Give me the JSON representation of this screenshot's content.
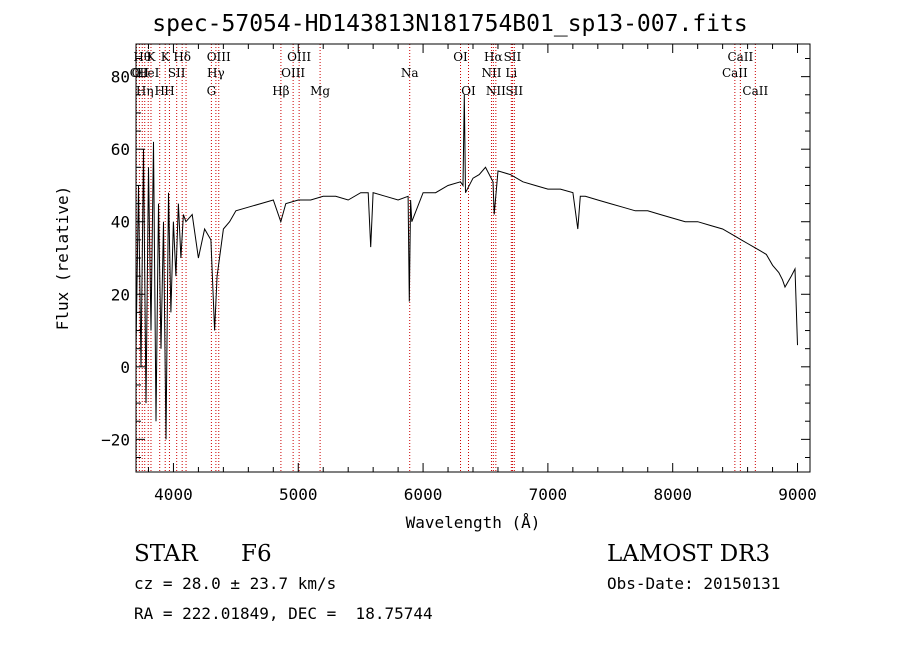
{
  "chart_data": {
    "type": "line",
    "title": "spec-57054-HD143813N181754B01_sp13-007.fits",
    "xlabel": "Wavelength (Å)",
    "ylabel": "Flux (relative)",
    "xlim": [
      3700,
      9100
    ],
    "ylim": [
      -29,
      89
    ],
    "xticks": [
      4000,
      5000,
      6000,
      7000,
      8000,
      9000
    ],
    "yticks": [
      -20,
      0,
      20,
      40,
      60,
      80
    ],
    "series": [
      {
        "name": "spectrum",
        "x": [
          3700,
          3720,
          3740,
          3760,
          3780,
          3800,
          3820,
          3840,
          3860,
          3880,
          3900,
          3920,
          3940,
          3960,
          3980,
          4000,
          4020,
          4040,
          4060,
          4080,
          4100,
          4150,
          4200,
          4250,
          4300,
          4330,
          4350,
          4400,
          4450,
          4500,
          4600,
          4700,
          4800,
          4860,
          4900,
          5000,
          5100,
          5200,
          5300,
          5400,
          5500,
          5560,
          5580,
          5600,
          5700,
          5800,
          5880,
          5890,
          5900,
          5910,
          6000,
          6100,
          6200,
          6300,
          6320,
          6330,
          6340,
          6400,
          6450,
          6500,
          6560,
          6570,
          6600,
          6700,
          6800,
          6900,
          7000,
          7100,
          7200,
          7240,
          7260,
          7300,
          7400,
          7500,
          7600,
          7700,
          7800,
          7900,
          8000,
          8100,
          8200,
          8300,
          8400,
          8500,
          8550,
          8600,
          8650,
          8700,
          8750,
          8800,
          8850,
          8880,
          8900,
          8950,
          8980,
          9000
        ],
        "y": [
          5,
          50,
          0,
          60,
          -10,
          55,
          10,
          62,
          -15,
          45,
          5,
          40,
          -20,
          48,
          15,
          40,
          25,
          45,
          30,
          42,
          40,
          42,
          30,
          38,
          35,
          10,
          25,
          38,
          40,
          43,
          44,
          45,
          46,
          40,
          45,
          46,
          46,
          47,
          47,
          46,
          48,
          48,
          33,
          48,
          47,
          46,
          47,
          18,
          46,
          40,
          48,
          48,
          50,
          51,
          50,
          75,
          48,
          52,
          53,
          55,
          51,
          42,
          54,
          53,
          51,
          50,
          49,
          49,
          48,
          38,
          47,
          47,
          46,
          45,
          44,
          43,
          43,
          42,
          41,
          40,
          40,
          39,
          38,
          36,
          35,
          34,
          33,
          32,
          31,
          28,
          26,
          24,
          22,
          25,
          27,
          6
        ]
      }
    ],
    "lines": [
      {
        "wl": 3704,
        "row": 1,
        "label": "O"
      },
      {
        "wl": 3727,
        "row": 1,
        "label": "OII"
      },
      {
        "wl": 3750,
        "row": 0,
        "label": "Hθ"
      },
      {
        "wl": 3770,
        "row": 2,
        "label": "Hη"
      },
      {
        "wl": 3798,
        "row": 1,
        "label": "HeI"
      },
      {
        "wl": 3820,
        "row": 0,
        "label": "K"
      },
      {
        "wl": 3890,
        "row": 2,
        "label": "H"
      },
      {
        "wl": 3934,
        "row": 0,
        "label": "K"
      },
      {
        "wl": 3968,
        "row": 2,
        "label": "H"
      },
      {
        "wl": 4026,
        "row": 1,
        "label": "SII"
      },
      {
        "wl": 4070,
        "row": 0,
        "label": "Hδ"
      },
      {
        "wl": 4101,
        "row": 0,
        "label": ""
      },
      {
        "wl": 4304,
        "row": 2,
        "label": "G"
      },
      {
        "wl": 4340,
        "row": 1,
        "label": "Hγ"
      },
      {
        "wl": 4363,
        "row": 0,
        "label": "OIII"
      },
      {
        "wl": 4861,
        "row": 2,
        "label": "Hβ"
      },
      {
        "wl": 4959,
        "row": 1,
        "label": "OIII"
      },
      {
        "wl": 5007,
        "row": 0,
        "label": "OIII"
      },
      {
        "wl": 5175,
        "row": 2,
        "label": "Mg"
      },
      {
        "wl": 5893,
        "row": 1,
        "label": "Na"
      },
      {
        "wl": 6300,
        "row": 0,
        "label": "OI"
      },
      {
        "wl": 6364,
        "row": 2,
        "label": "OI"
      },
      {
        "wl": 6548,
        "row": 1,
        "label": "NII"
      },
      {
        "wl": 6563,
        "row": 0,
        "label": "Hα"
      },
      {
        "wl": 6583,
        "row": 2,
        "label": "NII"
      },
      {
        "wl": 6707,
        "row": 1,
        "label": "Li"
      },
      {
        "wl": 6716,
        "row": 0,
        "label": "SII"
      },
      {
        "wl": 6731,
        "row": 2,
        "label": "SII"
      },
      {
        "wl": 8498,
        "row": 1,
        "label": "CaII"
      },
      {
        "wl": 8542,
        "row": 0,
        "label": "CaII"
      },
      {
        "wl": 8662,
        "row": 2,
        "label": "CaII"
      }
    ]
  },
  "info": {
    "object_class": "STAR",
    "subclass": "F6",
    "survey": "LAMOST DR3",
    "redshift": "cz = 28.0 ± 23.7 km/s",
    "obs_date": "Obs-Date: 20150131",
    "coords": "RA = 222.01849, DEC =  18.75744"
  },
  "colors": {
    "axis": "#000000",
    "spectrum": "#000000",
    "line_marker": "#cc0000",
    "background": "#ffffff"
  }
}
